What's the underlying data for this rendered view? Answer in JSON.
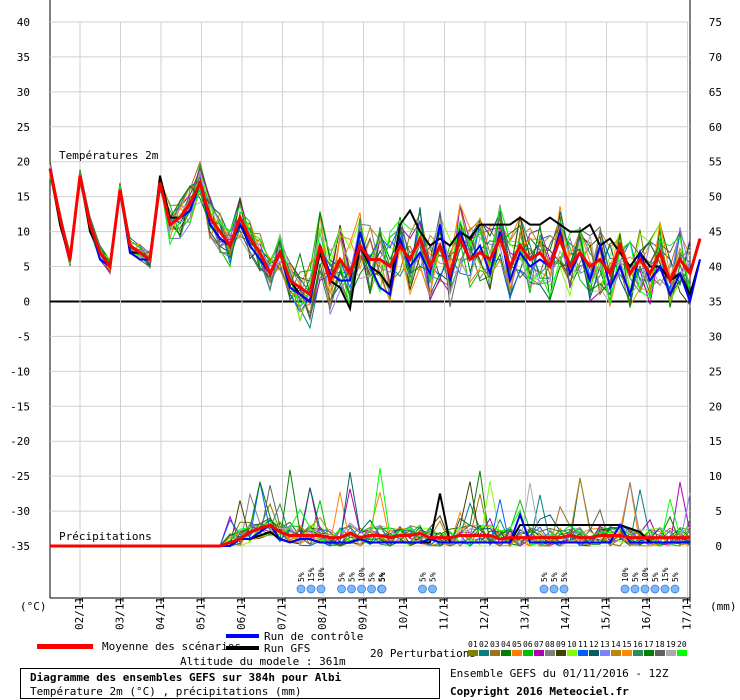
{
  "chart_data": {
    "type": "line",
    "left_axis": {
      "unit_label": "(°C)",
      "ticks": [
        40,
        35,
        30,
        25,
        20,
        15,
        10,
        5,
        0,
        -5,
        -10,
        -15,
        -20,
        -25,
        -30,
        -35
      ],
      "range": [
        -35,
        40
      ]
    },
    "right_axis": {
      "unit_label": "(mm)",
      "ticks": [
        75,
        70,
        65,
        60,
        55,
        50,
        45,
        40,
        35,
        30,
        25,
        20,
        15,
        10,
        5,
        0
      ],
      "range": [
        0,
        75
      ]
    },
    "x_labels": [
      "02/11",
      "03/11",
      "04/11",
      "05/11",
      "06/11",
      "07/11",
      "08/11",
      "09/11",
      "10/11",
      "11/11",
      "12/11",
      "13/11",
      "14/11",
      "15/11",
      "16/11",
      "17/11"
    ],
    "section_labels": {
      "temperature": "Températures 2m",
      "precipitation": "Précipitations"
    },
    "snow_markers": [
      {
        "day": "08/11",
        "labels": [
          "5%",
          "15%",
          "10%"
        ]
      },
      {
        "day": "09/11",
        "labels": [
          "5%",
          "5%",
          "10%",
          "5%",
          "5%"
        ]
      },
      {
        "day": "10/11",
        "labels": [
          "5%"
        ]
      },
      {
        "day": "11/11",
        "labels": [
          "5%",
          "5%"
        ]
      },
      {
        "day": "14/11",
        "labels": [
          "5%",
          "5%",
          "5%"
        ]
      },
      {
        "day": "16/11",
        "labels": [
          "10%",
          "5%",
          "10%",
          "5%",
          "15%",
          "5%"
        ]
      }
    ],
    "series": [
      {
        "name": "Moyenne des scénarios",
        "color": "#ff0000",
        "temp": [
          19,
          12,
          6,
          18,
          11,
          7,
          5,
          16,
          8,
          7,
          6,
          17,
          11,
          12,
          14,
          17,
          12,
          10,
          8,
          12,
          9,
          7,
          4,
          7,
          3,
          2,
          1,
          8,
          3,
          6,
          4,
          8,
          6,
          6,
          5,
          8,
          6,
          9,
          5,
          8,
          4,
          9,
          6,
          7,
          6,
          9,
          5,
          8,
          6,
          7,
          5,
          9,
          5,
          7,
          5,
          6,
          4,
          8,
          4,
          6,
          4,
          7,
          3,
          6,
          4,
          9
        ],
        "precip": [
          0,
          0,
          0,
          0,
          0,
          0,
          0,
          0,
          0,
          0,
          0,
          0,
          0,
          0,
          0,
          0,
          0,
          0,
          0.5,
          1,
          2,
          2.5,
          3,
          2,
          1.5,
          1.5,
          1.5,
          1.5,
          1.2,
          1.2,
          1.8,
          1.2,
          1.5,
          1.5,
          1.2,
          1.5,
          1.5,
          1.8,
          1.2,
          1.2,
          1.2,
          1.5,
          1.5,
          1.5,
          1.5,
          1,
          1.2,
          1.2,
          1.2,
          1.2,
          1.2,
          1.2,
          1.5,
          1.2,
          1.2,
          1.5,
          1.5,
          1.5,
          1.2,
          1.2,
          1.2,
          1.2,
          1.2,
          1.2,
          1.2,
          1.2,
          1.2,
          1,
          0.8,
          0.8,
          0.5
        ]
      },
      {
        "name": "Run de contrôle",
        "color": "#0000ff",
        "temp": [
          19,
          12,
          6,
          18,
          11,
          6,
          5,
          16,
          7,
          6,
          6,
          17,
          11,
          12,
          13,
          17,
          11,
          9,
          8,
          11,
          8,
          6,
          4,
          7,
          2,
          1,
          0,
          8,
          4,
          3,
          3,
          10,
          5,
          2,
          1,
          9,
          5,
          7,
          4,
          11,
          3,
          10,
          6,
          8,
          4,
          10,
          3,
          7,
          5,
          6,
          5,
          10,
          4,
          7,
          3,
          8,
          2,
          5,
          1,
          7,
          3,
          5,
          1,
          4,
          0,
          6
        ],
        "precip": [
          0,
          0,
          0,
          0,
          0,
          0,
          0,
          0,
          0,
          0,
          0,
          0,
          0,
          0,
          0,
          0,
          0,
          0,
          0,
          1,
          1,
          2,
          3,
          1,
          0.5,
          1,
          1,
          0.5,
          0.5,
          0.5,
          0.5,
          1,
          0.5,
          0.5,
          0.5,
          0.5,
          0.5,
          0.5,
          1,
          0.5,
          0.5,
          0.5,
          0.5,
          0.5,
          0.5,
          0.5,
          0.5,
          4.5,
          0.5,
          0.5,
          0.5,
          0.5,
          0.5,
          0.5,
          0.5,
          0.5,
          0.5,
          3,
          0.5,
          0.5,
          0.5,
          0.5,
          0.5,
          0.5,
          0.5,
          0.5,
          0.5,
          0.5,
          0.5,
          0.5,
          0.5
        ]
      },
      {
        "name": "Run GFS",
        "color": "#000000",
        "temp": [
          19,
          11,
          6,
          18,
          10,
          7,
          5,
          16,
          7,
          7,
          6,
          18,
          12,
          12,
          13,
          17,
          11,
          9,
          8,
          11,
          9,
          7,
          4,
          7,
          3,
          1,
          0,
          7,
          3,
          2,
          -1,
          8,
          5,
          4,
          2,
          11,
          13,
          10,
          8,
          9,
          8,
          10,
          9,
          11,
          11,
          11,
          11,
          12,
          11,
          11,
          12,
          11,
          10,
          10,
          11,
          8,
          9,
          7,
          5,
          7,
          5,
          5,
          3,
          4,
          1,
          6
        ],
        "precip": [
          0,
          0,
          0,
          0,
          0,
          0,
          0,
          0,
          0,
          0,
          0,
          0,
          0,
          0,
          0,
          0,
          0,
          0,
          0,
          1,
          1,
          1.5,
          2,
          1,
          0.5,
          1,
          1,
          0.5,
          0.5,
          0.5,
          0.5,
          1,
          0.5,
          0.5,
          0.5,
          0.5,
          0.5,
          0.5,
          0.5,
          7.5,
          0.5,
          0.5,
          0.5,
          0.5,
          0.5,
          0.5,
          0.5,
          3,
          3,
          3,
          3,
          3,
          3,
          3,
          3,
          3,
          3,
          3,
          2.5,
          2,
          0.5,
          0.5,
          0.5,
          0.5,
          0.5,
          0.5,
          0.5,
          0.5,
          0.5,
          0.5,
          0.5
        ]
      }
    ]
  },
  "legend": {
    "mean_label": "Moyenne des scénarios",
    "control_label": "Run de contrôle",
    "gfs_label": "Run GFS",
    "altitude": "Altitude du modele : 361m",
    "perturbations_label": "20 Perturbations",
    "perturbation_numbers": [
      "01",
      "02",
      "03",
      "04",
      "05",
      "06",
      "07",
      "08",
      "09",
      "10",
      "11",
      "12",
      "13",
      "14",
      "15",
      "16",
      "17",
      "18",
      "19",
      "20"
    ],
    "perturbation_colors": [
      "#7f7f00",
      "#008080",
      "#a07020",
      "#007f00",
      "#ff7f00",
      "#00c000",
      "#b000b0",
      "#808080",
      "#404000",
      "#7fff00",
      "#0060ff",
      "#006060",
      "#8080ff",
      "#b8860b",
      "#ff8c00",
      "#2e8b57",
      "#008000",
      "#606060",
      "#aaaaaa",
      "#00ff00"
    ]
  },
  "footer": {
    "title": "Diagramme des ensembles GEFS sur 384h pour Albi",
    "subtitle": "Température 2m (°C) , précipitations (mm)",
    "run_info": "Ensemble GEFS du 01/11/2016 - 12Z",
    "copyright": "Copyright 2016 Meteociel.fr"
  }
}
